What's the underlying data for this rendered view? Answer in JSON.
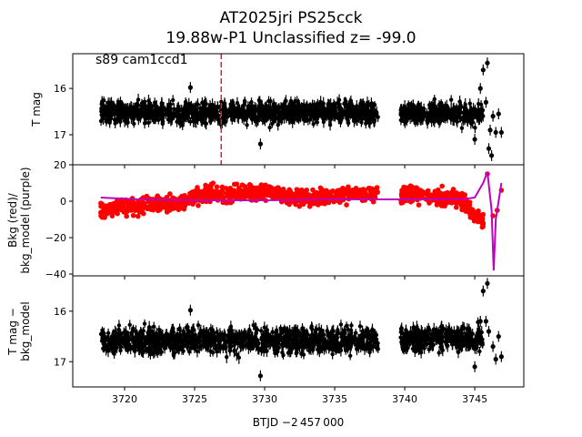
{
  "title": {
    "line1": "AT2025jri  PS25cck",
    "line2": "19.88w-P1 Unclassified z= -99.0"
  },
  "xlabel": "BTJD −2 457 000",
  "colors": {
    "data": "#000000",
    "bkg": "#ff0000",
    "model": "#bf00bf",
    "marker_line": "#d62728"
  },
  "chart_data": [
    {
      "type": "scatter",
      "ylabel": "T mag",
      "annotation": "s89 cam1ccd1",
      "y_inverted": true,
      "xlim": [
        3716.3,
        3748.5
      ],
      "ylim": [
        17.65,
        15.25
      ],
      "x_ticks": [
        3720,
        3725,
        3730,
        3735,
        3740,
        3745
      ],
      "y_ticks": [
        16,
        17
      ],
      "y_tick_labels": [
        "16",
        "17"
      ],
      "vertical_line_x": 3726.9,
      "segments": [
        {
          "x0": 3718.3,
          "x1": 3738.1,
          "center": 16.52,
          "spread": 0.22
        },
        {
          "x0": 3739.7,
          "x1": 3745.6,
          "center": 16.55,
          "spread": 0.2
        }
      ],
      "outliers": [
        {
          "x": 3724.7,
          "y": 15.98
        },
        {
          "x": 3729.7,
          "y": 17.2
        },
        {
          "x": 3745.0,
          "y": 17.1
        },
        {
          "x": 3745.4,
          "y": 16.0
        },
        {
          "x": 3745.6,
          "y": 15.6
        },
        {
          "x": 3745.8,
          "y": 16.3
        },
        {
          "x": 3745.9,
          "y": 15.45
        },
        {
          "x": 3746.0,
          "y": 17.3
        },
        {
          "x": 3746.1,
          "y": 16.9
        },
        {
          "x": 3746.2,
          "y": 17.45
        },
        {
          "x": 3746.3,
          "y": 16.6
        },
        {
          "x": 3746.5,
          "y": 16.95
        },
        {
          "x": 3746.7,
          "y": 16.55
        },
        {
          "x": 3746.9,
          "y": 16.95
        }
      ]
    },
    {
      "type": "scatter",
      "ylabel": "Bkg (red)/\nbkg_model (purple)",
      "xlim": [
        3716.3,
        3748.5
      ],
      "ylim": [
        -41,
        20
      ],
      "x_ticks": [
        3720,
        3725,
        3730,
        3735,
        3740,
        3745
      ],
      "y_ticks": [
        20,
        0,
        -20,
        -40
      ],
      "y_tick_labels": [
        "20",
        "0",
        "−20",
        "−40"
      ],
      "bkg_points": [
        {
          "x": 3718.3,
          "y": -5
        },
        {
          "x": 3720,
          "y": -3
        },
        {
          "x": 3722,
          "y": -2
        },
        {
          "x": 3724,
          "y": -1
        },
        {
          "x": 3725,
          "y": 3
        },
        {
          "x": 3727,
          "y": 4
        },
        {
          "x": 3730,
          "y": 5
        },
        {
          "x": 3733,
          "y": 2
        },
        {
          "x": 3735,
          "y": 3
        },
        {
          "x": 3738,
          "y": 4
        },
        {
          "x": 3740,
          "y": 4
        },
        {
          "x": 3742,
          "y": 3
        },
        {
          "x": 3744,
          "y": 1
        },
        {
          "x": 3745,
          "y": -8
        },
        {
          "x": 3745.6,
          "y": -12
        },
        {
          "x": 3745.9,
          "y": 15
        },
        {
          "x": 3746.3,
          "y": -8
        },
        {
          "x": 3746.6,
          "y": -5
        },
        {
          "x": 3746.9,
          "y": 6
        }
      ],
      "model_line": [
        {
          "x": 3718.3,
          "y": 2
        },
        {
          "x": 3721,
          "y": 1
        },
        {
          "x": 3725,
          "y": 0.5
        },
        {
          "x": 3730,
          "y": 0.5
        },
        {
          "x": 3735,
          "y": 1
        },
        {
          "x": 3738.1,
          "y": 1
        },
        {
          "x": 3740,
          "y": 1
        },
        {
          "x": 3744,
          "y": 1
        },
        {
          "x": 3745,
          "y": 2
        },
        {
          "x": 3745.6,
          "y": 10
        },
        {
          "x": 3745.9,
          "y": 16
        },
        {
          "x": 3746.2,
          "y": -5
        },
        {
          "x": 3746.35,
          "y": -38
        },
        {
          "x": 3746.5,
          "y": -10
        },
        {
          "x": 3746.9,
          "y": 10
        }
      ]
    },
    {
      "type": "scatter",
      "ylabel": "T mag −\nbkg_model",
      "y_inverted": true,
      "xlim": [
        3716.3,
        3748.5
      ],
      "ylim": [
        17.5,
        15.3
      ],
      "x_ticks": [
        3720,
        3725,
        3730,
        3735,
        3740,
        3745
      ],
      "x_tick_labels": [
        "3720",
        "3725",
        "3730",
        "3735",
        "3740",
        "3745"
      ],
      "y_ticks": [
        16,
        17
      ],
      "y_tick_labels": [
        "16",
        "17"
      ],
      "segments": [
        {
          "x0": 3718.3,
          "x1": 3738.1,
          "center": 16.58,
          "spread": 0.24
        },
        {
          "x0": 3739.7,
          "x1": 3745.6,
          "center": 16.55,
          "spread": 0.22
        }
      ],
      "outliers": [
        {
          "x": 3724.7,
          "y": 15.98
        },
        {
          "x": 3729.7,
          "y": 17.28
        },
        {
          "x": 3745.0,
          "y": 17.1
        },
        {
          "x": 3745.4,
          "y": 16.2
        },
        {
          "x": 3745.6,
          "y": 15.6
        },
        {
          "x": 3745.8,
          "y": 16.2
        },
        {
          "x": 3745.9,
          "y": 15.45
        },
        {
          "x": 3746.0,
          "y": 16.4
        },
        {
          "x": 3746.3,
          "y": 16.7
        },
        {
          "x": 3746.5,
          "y": 16.95
        },
        {
          "x": 3746.7,
          "y": 16.5
        },
        {
          "x": 3746.9,
          "y": 16.9
        }
      ]
    }
  ]
}
